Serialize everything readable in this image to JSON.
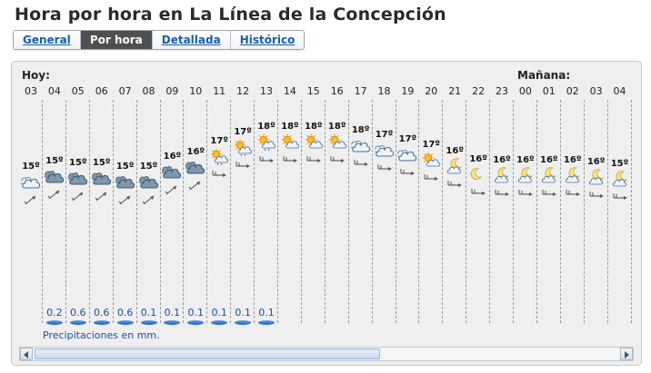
{
  "title": "Hora por hora en La Línea de la Concepción",
  "tabs": [
    {
      "label": "General",
      "active": false
    },
    {
      "label": "Por hora",
      "active": true
    },
    {
      "label": "Detallada",
      "active": false
    },
    {
      "label": "Histórico",
      "active": false
    }
  ],
  "days": {
    "today": "Hoy:",
    "tomorrow": "Mañana:"
  },
  "hours": [
    {
      "hour": "03",
      "temp": "15º",
      "icon": "cloudy-icon",
      "wind": "wind-northeast-icon",
      "precip": ""
    },
    {
      "hour": "04",
      "temp": "15º",
      "icon": "dark-clouds-icon",
      "wind": "wind-northeast-icon",
      "precip": "0.2"
    },
    {
      "hour": "05",
      "temp": "15º",
      "icon": "dark-clouds-icon",
      "wind": "wind-northeast-icon",
      "precip": "0.6"
    },
    {
      "hour": "06",
      "temp": "15º",
      "icon": "dark-clouds-icon",
      "wind": "wind-northeast-icon",
      "precip": "0.6"
    },
    {
      "hour": "07",
      "temp": "15º",
      "icon": "dark-clouds-icon",
      "wind": "wind-northeast-icon",
      "precip": "0.6"
    },
    {
      "hour": "08",
      "temp": "15º",
      "icon": "dark-clouds-icon",
      "wind": "wind-northeast-icon",
      "precip": "0.1"
    },
    {
      "hour": "09",
      "temp": "16º",
      "icon": "dark-clouds-icon",
      "wind": "wind-northeast-icon",
      "precip": "0.1"
    },
    {
      "hour": "10",
      "temp": "16º",
      "icon": "dark-clouds-icon",
      "wind": "wind-northeast-icon",
      "precip": "0.1"
    },
    {
      "hour": "11",
      "temp": "17º",
      "icon": "sun-cloud-rain-icon",
      "wind": "wind-east-icon",
      "precip": "0.1"
    },
    {
      "hour": "12",
      "temp": "17º",
      "icon": "sun-cloud-rain-icon",
      "wind": "wind-east-icon",
      "precip": "0.1"
    },
    {
      "hour": "13",
      "temp": "18º",
      "icon": "sun-cloud-rain-icon",
      "wind": "wind-east-icon",
      "precip": "0.1"
    },
    {
      "hour": "14",
      "temp": "18º",
      "icon": "sun-cloud-icon",
      "wind": "wind-east-icon",
      "precip": ""
    },
    {
      "hour": "15",
      "temp": "18º",
      "icon": "sun-cloud-icon",
      "wind": "wind-east-icon",
      "precip": ""
    },
    {
      "hour": "16",
      "temp": "18º",
      "icon": "sun-cloud-icon",
      "wind": "wind-east-icon",
      "precip": ""
    },
    {
      "hour": "17",
      "temp": "18º",
      "icon": "cloudy-icon",
      "wind": "wind-east-icon",
      "precip": ""
    },
    {
      "hour": "18",
      "temp": "17º",
      "icon": "cloudy-icon",
      "wind": "wind-east-icon",
      "precip": ""
    },
    {
      "hour": "19",
      "temp": "17º",
      "icon": "cloudy-icon",
      "wind": "wind-east-icon",
      "precip": ""
    },
    {
      "hour": "20",
      "temp": "17º",
      "icon": "sun-cloud-icon",
      "wind": "wind-east-icon",
      "precip": ""
    },
    {
      "hour": "21",
      "temp": "16º",
      "icon": "moon-cloud-icon",
      "wind": "wind-east-icon",
      "precip": ""
    },
    {
      "hour": "22",
      "temp": "16º",
      "icon": "moon-icon",
      "wind": "wind-east-icon",
      "precip": ""
    },
    {
      "hour": "23",
      "temp": "16º",
      "icon": "moon-cloud-icon",
      "wind": "wind-east-icon",
      "precip": ""
    },
    {
      "hour": "00",
      "temp": "16º",
      "icon": "moon-cloud-icon",
      "wind": "wind-east-icon",
      "precip": ""
    },
    {
      "hour": "01",
      "temp": "16º",
      "icon": "moon-cloud-icon",
      "wind": "wind-east-icon",
      "precip": ""
    },
    {
      "hour": "02",
      "temp": "16º",
      "icon": "moon-cloud-icon",
      "wind": "wind-east-icon",
      "precip": ""
    },
    {
      "hour": "03",
      "temp": "16º",
      "icon": "moon-cloud-icon",
      "wind": "wind-east-icon",
      "precip": ""
    },
    {
      "hour": "04",
      "temp": "15º",
      "icon": "moon-cloud-icon",
      "wind": "wind-east-icon",
      "precip": ""
    }
  ],
  "precip_label": "Precipitaciones en mm.",
  "scrollbar": {
    "thumb_fraction": 0.59
  }
}
